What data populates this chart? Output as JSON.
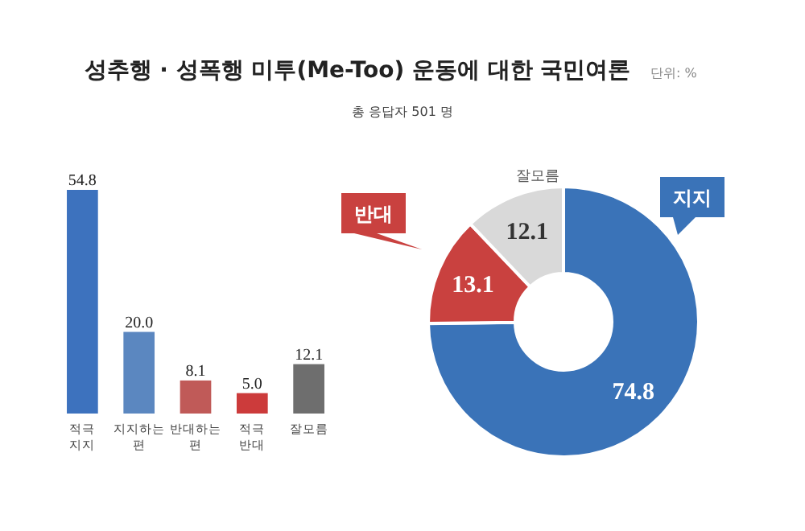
{
  "chart_data": [
    {
      "type": "other",
      "title": "성추행 · 성폭행 미투(Me-Too) 운동에 대한 국민여론",
      "subtitle": "총 응답자 501 명",
      "annotations": [
        "단위: %"
      ]
    },
    {
      "type": "bar",
      "categories": [
        "적극 지지",
        "지지하는 편",
        "반대하는 편",
        "적극 반대",
        "잘모름"
      ],
      "values": [
        54.8,
        20.0,
        8.1,
        5.0,
        12.1
      ],
      "colors": [
        "#3d72be",
        "#5b87c0",
        "#c05a58",
        "#cc3b3b",
        "#6e6e6e"
      ],
      "value_labels": [
        "54.8",
        "20.0",
        "8.1",
        "5.0",
        "12.1"
      ]
    },
    {
      "type": "donut",
      "categories": [
        "지지",
        "반대",
        "잘모름"
      ],
      "values": [
        74.8,
        13.1,
        12.1
      ],
      "colors": [
        "#3a73b8",
        "#c9413f",
        "#d9d9d9"
      ],
      "data_labels": true
    }
  ]
}
